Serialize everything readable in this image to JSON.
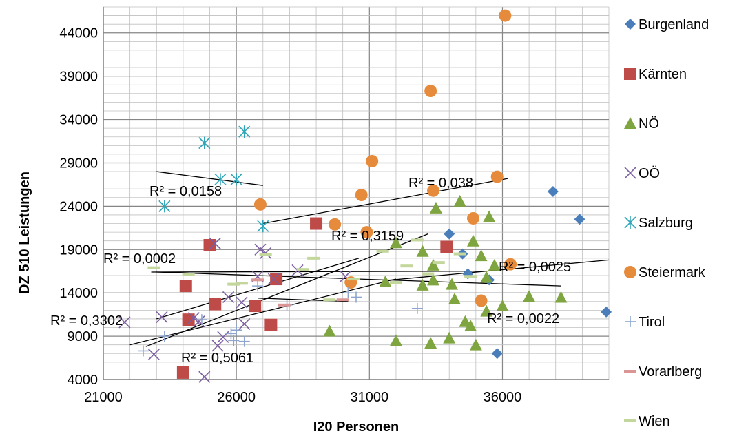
{
  "chart_data": {
    "type": "scatter",
    "title": "",
    "xlabel": "I20 Personen",
    "ylabel": "DZ 510 Leistungen",
    "xlim": [
      21000,
      40000
    ],
    "ylim": [
      4000,
      47000
    ],
    "xticks": [
      21000,
      26000,
      31000,
      36000
    ],
    "yticks": [
      4000,
      9000,
      14000,
      19000,
      24000,
      29000,
      34000,
      39000,
      44000
    ],
    "grid": true,
    "legend_position": "right",
    "series": [
      {
        "name": "Burgenland",
        "marker": "diamond",
        "color": "#4a7ebb",
        "points": [
          [
            34000,
            20800
          ],
          [
            34500,
            18500
          ],
          [
            34700,
            16200
          ],
          [
            35500,
            15500
          ],
          [
            35800,
            7000
          ],
          [
            37900,
            25700
          ],
          [
            38900,
            22500
          ],
          [
            39900,
            11800
          ]
        ]
      },
      {
        "name": "Kärnten",
        "marker": "square",
        "color": "#be4b48",
        "points": [
          [
            24000,
            4800
          ],
          [
            24100,
            14800
          ],
          [
            24200,
            10900
          ],
          [
            25000,
            19500
          ],
          [
            25200,
            12700
          ],
          [
            26700,
            12500
          ],
          [
            27500,
            15600
          ],
          [
            27300,
            10300
          ],
          [
            29000,
            22000
          ],
          [
            33900,
            19300
          ]
        ]
      },
      {
        "name": "NÖ",
        "marker": "triangle",
        "color": "#7ea53f",
        "points": [
          [
            29500,
            9600
          ],
          [
            31600,
            15300
          ],
          [
            32000,
            8500
          ],
          [
            32000,
            19800
          ],
          [
            33000,
            18800
          ],
          [
            33000,
            14900
          ],
          [
            33300,
            8200
          ],
          [
            33400,
            17200
          ],
          [
            33400,
            15500
          ],
          [
            33500,
            23800
          ],
          [
            34000,
            8800
          ],
          [
            34100,
            15000
          ],
          [
            34200,
            13300
          ],
          [
            34400,
            24600
          ],
          [
            34600,
            10700
          ],
          [
            34800,
            10200
          ],
          [
            34900,
            20000
          ],
          [
            35000,
            8000
          ],
          [
            35200,
            18300
          ],
          [
            35400,
            11900
          ],
          [
            35400,
            15800
          ],
          [
            35500,
            22800
          ],
          [
            35700,
            17200
          ],
          [
            36000,
            12500
          ],
          [
            37000,
            13600
          ],
          [
            38200,
            13500
          ]
        ]
      },
      {
        "name": "OÖ",
        "marker": "x",
        "color": "#7c5fa0",
        "points": [
          [
            21800,
            10600
          ],
          [
            22900,
            6900
          ],
          [
            23200,
            11200
          ],
          [
            24400,
            11100
          ],
          [
            24600,
            10700
          ],
          [
            24800,
            4300
          ],
          [
            25200,
            19700
          ],
          [
            25300,
            7900
          ],
          [
            25500,
            8900
          ],
          [
            25700,
            13500
          ],
          [
            26200,
            12900
          ],
          [
            26300,
            10400
          ],
          [
            26800,
            15900
          ],
          [
            26900,
            19000
          ],
          [
            27100,
            18600
          ],
          [
            27400,
            15600
          ],
          [
            28300,
            16600
          ],
          [
            30100,
            15900
          ]
        ]
      },
      {
        "name": "Salzburg",
        "marker": "asterisk",
        "color": "#2fa5b8",
        "points": [
          [
            23300,
            24000
          ],
          [
            24800,
            31300
          ],
          [
            25400,
            27100
          ],
          [
            26000,
            27100
          ],
          [
            26300,
            32600
          ],
          [
            27000,
            21700
          ]
        ]
      },
      {
        "name": "Steiermark",
        "marker": "circle",
        "color": "#e58b3b",
        "points": [
          [
            26900,
            24200
          ],
          [
            29700,
            21900
          ],
          [
            30300,
            15200
          ],
          [
            30700,
            25300
          ],
          [
            30900,
            21000
          ],
          [
            31100,
            29200
          ],
          [
            33300,
            37300
          ],
          [
            33400,
            25800
          ],
          [
            34900,
            22600
          ],
          [
            35200,
            13100
          ],
          [
            35800,
            27400
          ],
          [
            36100,
            46000
          ],
          [
            36300,
            17300
          ]
        ]
      },
      {
        "name": "Tirol",
        "marker": "plus",
        "color": "#8ea6cf",
        "points": [
          [
            22500,
            7300
          ],
          [
            23300,
            9000
          ],
          [
            24700,
            10900
          ],
          [
            25800,
            9300
          ],
          [
            25900,
            8500
          ],
          [
            26000,
            9700
          ],
          [
            26300,
            8400
          ],
          [
            26800,
            14800
          ],
          [
            27900,
            12600
          ],
          [
            30200,
            14000
          ],
          [
            30500,
            13500
          ],
          [
            32800,
            12200
          ]
        ]
      },
      {
        "name": "Vorarlberg",
        "marker": "dash",
        "color": "#d99694",
        "points": [
          [
            26800,
            15500
          ],
          [
            27800,
            12600
          ],
          [
            30000,
            13200
          ]
        ]
      },
      {
        "name": "Wien",
        "marker": "dash",
        "color": "#c3d69b",
        "points": [
          [
            22900,
            16900
          ],
          [
            24200,
            16100
          ],
          [
            25900,
            15000
          ],
          [
            26200,
            15100
          ],
          [
            27100,
            18400
          ],
          [
            28500,
            16700
          ],
          [
            28900,
            18000
          ],
          [
            29500,
            13200
          ],
          [
            30400,
            15600
          ],
          [
            31500,
            18800
          ],
          [
            32000,
            15200
          ],
          [
            32400,
            17100
          ],
          [
            32800,
            20100
          ],
          [
            33200,
            16200
          ],
          [
            33600,
            17500
          ],
          [
            34400,
            18500
          ],
          [
            34800,
            15900
          ]
        ]
      }
    ],
    "trendlines": [
      {
        "series": "Burgenland",
        "r2_label": "R² = 0,0022",
        "x": [
          23000,
          38200
        ],
        "y": [
          16400,
          14800
        ]
      },
      {
        "series": "Kärnten",
        "r2_label": "R² = 0,3302",
        "x": [
          22000,
          32000
        ],
        "y": [
          8000,
          15600
        ]
      },
      {
        "series": "NÖ",
        "r2_label": "R² = 0,0025",
        "x": [
          31500,
          40000
        ],
        "y": [
          15400,
          17800
        ]
      },
      {
        "series": "OÖ",
        "r2_label": "R² = 0,3159",
        "x": [
          23000,
          30600
        ],
        "y": [
          11000,
          18000
        ]
      },
      {
        "series": "Salzburg",
        "r2_label": "R² = 0,0158",
        "x": [
          23000,
          27000
        ],
        "y": [
          28000,
          26400
        ]
      },
      {
        "series": "Steiermark",
        "r2_label": "R² = 0,038",
        "x": [
          27000,
          36200
        ],
        "y": [
          22000,
          27200
        ]
      },
      {
        "series": "Tirol",
        "r2_label": "R² = 0,5061",
        "x": [
          22600,
          33200
        ],
        "y": [
          7800,
          20800
        ]
      },
      {
        "series": "Vorarlberg",
        "r2_label": "",
        "x": [
          26800,
          30200
        ],
        "y": [
          13400,
          13000
        ]
      },
      {
        "series": "Wien",
        "r2_label": "R² = 0,0002",
        "x": [
          22800,
          35200
        ],
        "y": [
          16400,
          16500
        ]
      }
    ]
  }
}
